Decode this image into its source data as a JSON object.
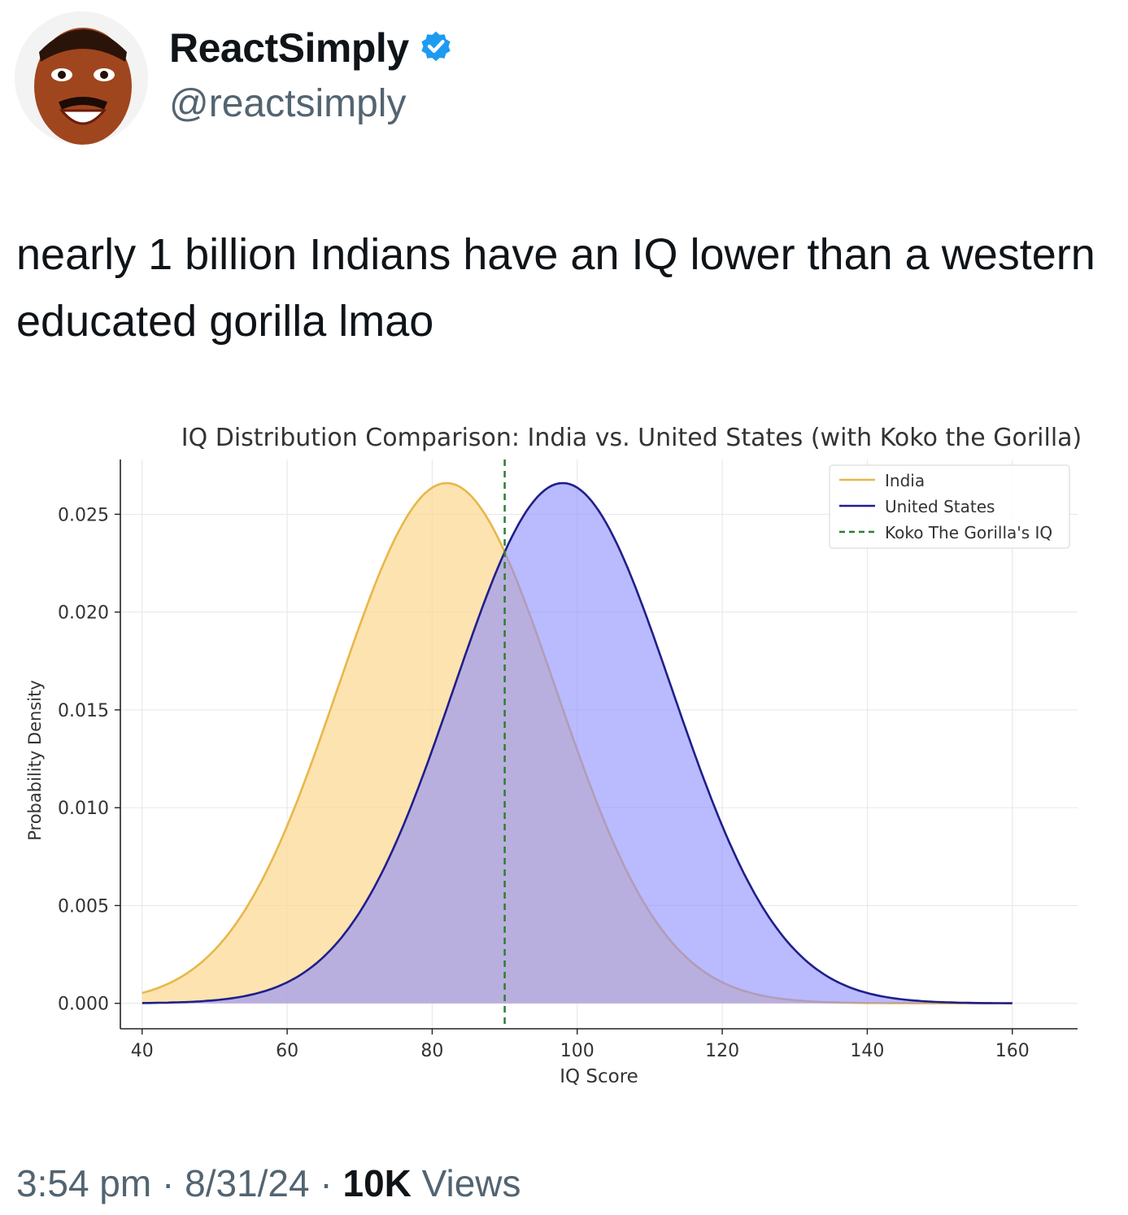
{
  "tweet": {
    "author": {
      "display_name": "ReactSimply",
      "handle": "@reactsimply",
      "verified": true,
      "avatar_icon": "avatar-face-icon",
      "verified_icon": "verified-badge-icon"
    },
    "text": "nearly 1 billion Indians have an IQ lower than a western educated gorilla lmao",
    "time": "3:54 pm",
    "date": "8/31/24",
    "separator": "·",
    "views_count": "10K",
    "views_label": "Views"
  },
  "colors": {
    "india": "#e8b74a",
    "india_fill": "#fcd995",
    "us": "#1f1f8a",
    "us_fill": "#8c8cff",
    "koko": "#2e7d32",
    "verified": "#1d9bf0"
  },
  "chart_data": {
    "type": "area",
    "title": "IQ Distribution Comparison: India vs. United States (with Koko the Gorilla)",
    "xlabel": "IQ Score",
    "ylabel": "Probability Density",
    "xlim": [
      37,
      169
    ],
    "ylim": [
      -0.0013,
      0.0278
    ],
    "x_ticks": [
      40,
      60,
      80,
      100,
      120,
      140,
      160
    ],
    "y_ticks": [
      "0.000",
      "0.005",
      "0.010",
      "0.015",
      "0.020",
      "0.025"
    ],
    "grid": true,
    "legend_position": "top-right",
    "series": [
      {
        "name": "India",
        "kind": "normal",
        "mean": 82,
        "sd": 15,
        "x_range": [
          40,
          160
        ]
      },
      {
        "name": "United States",
        "kind": "normal",
        "mean": 98,
        "sd": 15,
        "x_range": [
          40,
          160
        ]
      }
    ],
    "vline": {
      "name": "Koko The Gorilla's IQ",
      "x": 90
    },
    "legend": [
      "India",
      "United States",
      "Koko The Gorilla's IQ"
    ]
  }
}
